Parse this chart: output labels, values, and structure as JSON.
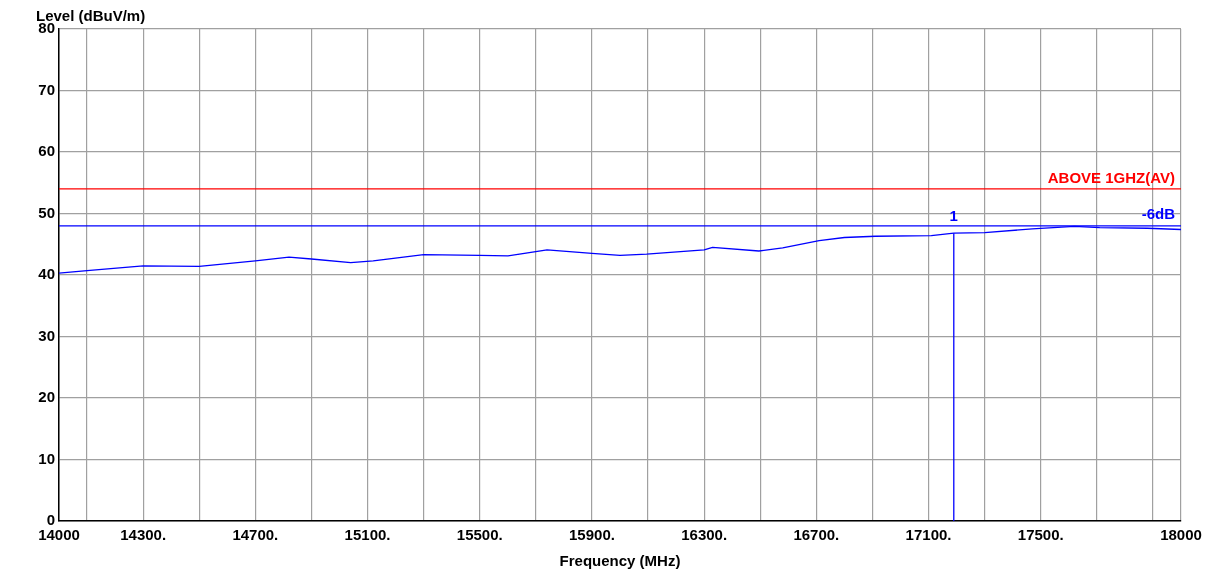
{
  "chart_data": {
    "type": "line",
    "xlabel": "Frequency (MHz)",
    "ylabel": "Level (dBuV/m)",
    "x": [
      14000,
      14100,
      14300,
      14500,
      14700,
      14820,
      14900,
      15040,
      15120,
      15300,
      15500,
      15600,
      15740,
      15900,
      16000,
      16095,
      16300,
      16330,
      16495,
      16580,
      16710,
      16800,
      16910,
      17110,
      17190,
      17300,
      17470,
      17620,
      17710,
      17880,
      18000
    ],
    "series": [
      {
        "color": "#0000ff",
        "values": [
          40.3,
          40.7,
          41.5,
          41.4,
          42.3,
          42.9,
          42.6,
          42.0,
          42.3,
          43.3,
          43.2,
          43.1,
          44.1,
          43.5,
          43.2,
          43.4,
          44.1,
          44.5,
          43.9,
          44.4,
          45.6,
          46.1,
          46.3,
          46.4,
          46.8,
          46.9,
          47.5,
          47.9,
          47.7,
          47.6,
          47.4
        ]
      }
    ],
    "xlim": [
      14000,
      18000
    ],
    "xticks": [
      {
        "value": 14000,
        "label": "14000"
      },
      {
        "value": 14100,
        "label": null
      },
      {
        "value": 14300,
        "label": "14300."
      },
      {
        "value": 14500,
        "label": null
      },
      {
        "value": 14700,
        "label": "14700."
      },
      {
        "value": 14900,
        "label": null
      },
      {
        "value": 15100,
        "label": "15100."
      },
      {
        "value": 15300,
        "label": null
      },
      {
        "value": 15500,
        "label": "15500."
      },
      {
        "value": 15700,
        "label": null
      },
      {
        "value": 15900,
        "label": "15900."
      },
      {
        "value": 16100,
        "label": null
      },
      {
        "value": 16300,
        "label": "16300."
      },
      {
        "value": 16500,
        "label": null
      },
      {
        "value": 16700,
        "label": "16700."
      },
      {
        "value": 16900,
        "label": null
      },
      {
        "value": 17100,
        "label": "17100."
      },
      {
        "value": 17300,
        "label": null
      },
      {
        "value": 17500,
        "label": "17500."
      },
      {
        "value": 17700,
        "label": null
      },
      {
        "value": 17900,
        "label": null
      },
      {
        "value": 18000,
        "label": "18000"
      }
    ],
    "ylim": [
      0,
      80
    ],
    "yticks": [
      0,
      10,
      20,
      30,
      40,
      50,
      60,
      70,
      80
    ],
    "grid": true,
    "legend": false,
    "marker": "none",
    "line_style": "solid",
    "ref_lines": [
      {
        "axis": "y",
        "value": 54,
        "label": "ABOVE 1GHZ(AV)",
        "color": "#ff0000"
      },
      {
        "axis": "y",
        "value": 48,
        "label": "-6dB",
        "color": "#0000ff"
      },
      {
        "axis": "x",
        "value": 17190,
        "color": "#0000ff"
      }
    ],
    "annotations": [
      {
        "text": "1",
        "x": 17190,
        "y": 46.8
      }
    ]
  }
}
